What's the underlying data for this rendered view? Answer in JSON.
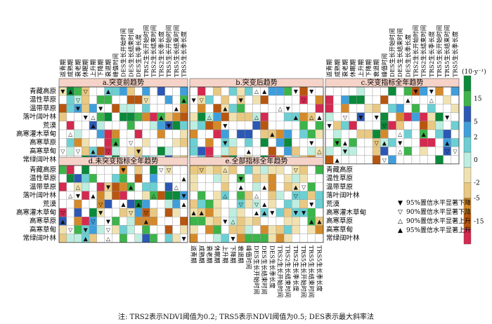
{
  "chart_data": {
    "type": "heatmap",
    "units": "(10·y⁻¹)",
    "colorbar": {
      "labels": [
        "15",
        "5",
        "2",
        "0",
        "-2",
        "-5",
        "-15"
      ],
      "colors": [
        "#0a8a3a",
        "#3cb44a",
        "#2c58b5",
        "#3f9fdc",
        "#6ccfd3",
        "#bdeee0",
        "#f0e2b0",
        "#e9c882",
        "#d48a2a",
        "#b8560f",
        "#d42a50"
      ]
    },
    "row_labels": [
      "青藏高原",
      "温性草原",
      "温带草原",
      "落叶阔叶林",
      "荒漠",
      "高寒灌木草甸",
      "高寒草原",
      "高寒草甸",
      "常绿阔叶林"
    ],
    "col_labels_a": [
      "返青期",
      "成熟期",
      "衰老期",
      "休眠期",
      "上升期",
      "下降期",
      "衰退期",
      "峰值时间",
      "DES生长开始时间",
      "DES生长结束时间",
      "DES生长季长度",
      "TRS2生长开始时间",
      "TRS2生长结束时间",
      "TRS2生长季长度",
      "TRS5生长开始时间",
      "TRS5生长结束时间",
      "TRS5生长季长度"
    ],
    "col_labels_c": [
      "返青期",
      "成熟期",
      "衰老期",
      "休眠期",
      "上升期",
      "下降期",
      "衰退期",
      "峰值时间",
      "DES生长开始时间",
      "DES生长结束时间",
      "DES生长季长度",
      "TRS2生长开始时间",
      "TRS2生长结束时间",
      "TRS2生长季长度",
      "TRS5生长开始时间",
      "TRS5生长结束时间",
      "TRS5生长季长度"
    ],
    "panels": [
      {
        "title": "a.突变前趋势",
        "cols": 17
      },
      {
        "title": "b.突变后趋势",
        "cols": 17
      },
      {
        "title": "c.突变指标全年趋势",
        "cols": 17
      },
      {
        "title": "d.未突变指标全年趋势",
        "cols": 17
      },
      {
        "title": "e.全部指标全年趋势",
        "cols": 17
      }
    ],
    "right_row_labels": [
      "青藏高原",
      "温性草原",
      "温带草原",
      "落叶阔叶林",
      "荒漠",
      "高寒灌木草甸",
      "高寒草原",
      "高寒草甸",
      "常绿阔叶林"
    ],
    "legend": [
      {
        "symbol": "▼",
        "label": "95%置信水平显著下降"
      },
      {
        "symbol": "▽",
        "label": "90%置信水平显著下降"
      },
      {
        "symbol": "△",
        "label": "90%置信水平显著上升"
      },
      {
        "symbol": "▲",
        "label": "95%置信水平显著上升"
      }
    ]
  },
  "note": "注: TRS2表示NDVI阈值为0.2; TRS5表示NDVI阈值为0.5; DES表示最大斜率法"
}
